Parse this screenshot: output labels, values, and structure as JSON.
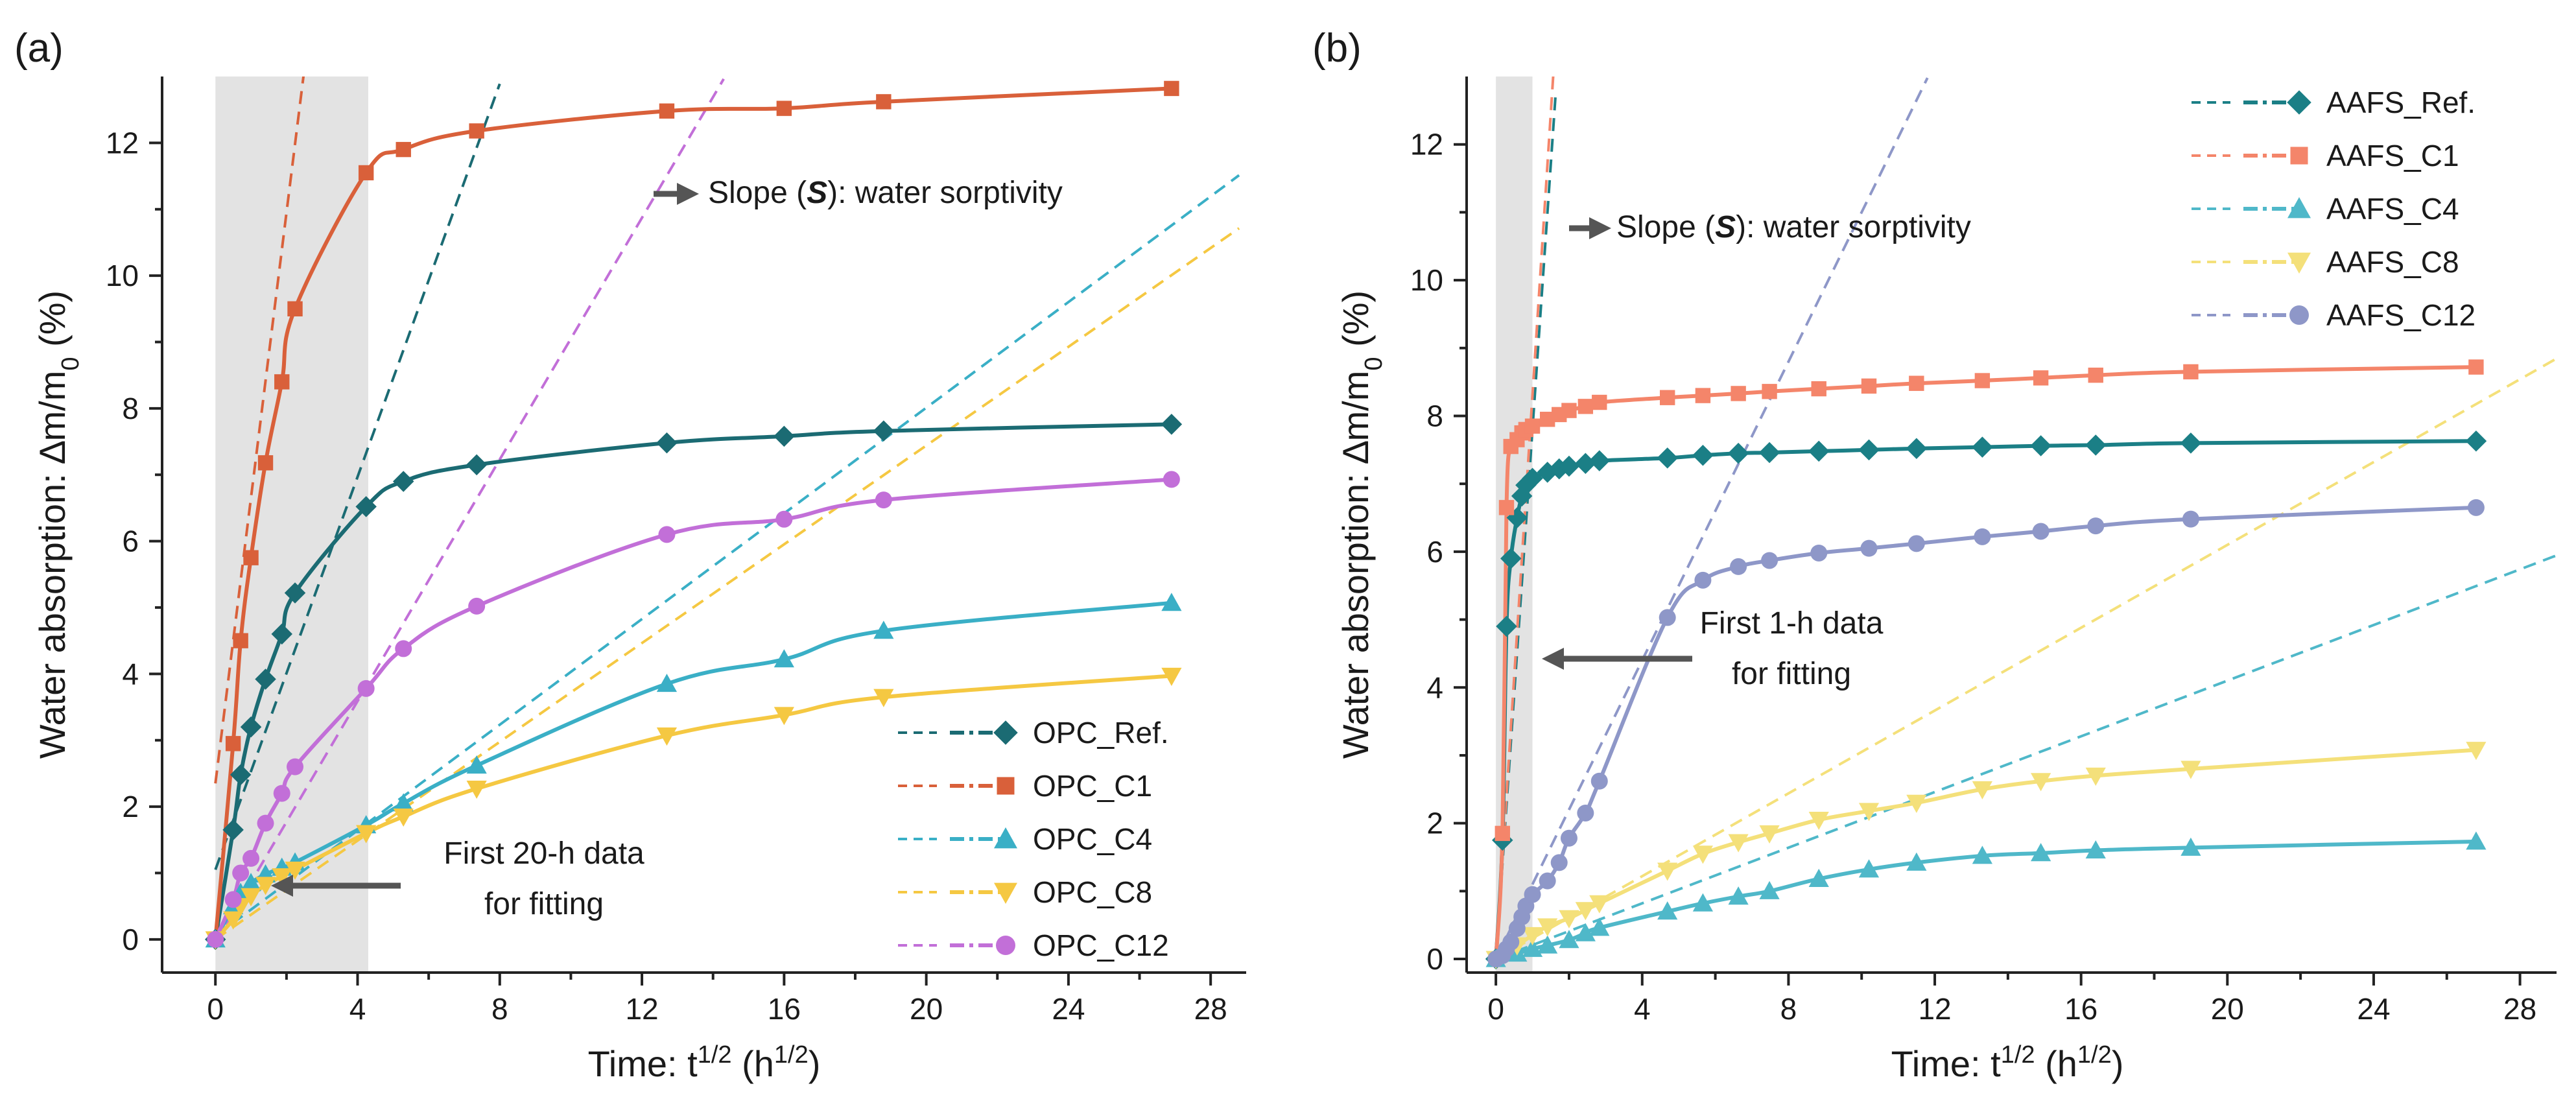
{
  "chart_data": [
    {
      "panel_label": "(a)",
      "type": "line",
      "xlabel": "Time: t^{1/2} (h^{1/2})",
      "ylabel": "Water absorption: ∆m/m_0 (%)",
      "xlim": [
        -1.5,
        29
      ],
      "ylim": [
        -0.5,
        13
      ],
      "xticks": [
        0,
        4,
        8,
        12,
        16,
        20,
        24,
        28
      ],
      "yticks": [
        0,
        2,
        4,
        6,
        8,
        10,
        12
      ],
      "x_tick_labels": [
        "0",
        "4",
        "8",
        "12",
        "16",
        "20",
        "24",
        "28"
      ],
      "y_tick_labels": [
        "0",
        "2",
        "4",
        "6",
        "8",
        "10",
        "12"
      ],
      "shaded_region": [
        0,
        4.3
      ],
      "legend_position": "bottom-right",
      "annotations": [
        {
          "text_before": "Slope (",
          "text_bold": "S",
          "text_after": "): water sorptivity",
          "arrow": "right"
        },
        {
          "lines": [
            "First 20-h data",
            "for fitting"
          ],
          "arrow": "left"
        }
      ],
      "series": [
        {
          "name": "OPC_Ref.",
          "color": "#1b6b73",
          "marker": "diamond",
          "x": [
            0,
            0.5,
            0.71,
            1,
            1.41,
            1.87,
            2.24,
            4.24,
            5.29,
            7.35,
            12.7,
            16,
            18.8,
            26.9
          ],
          "y": [
            0,
            1.65,
            2.48,
            3.2,
            3.92,
            4.6,
            5.22,
            6.52,
            6.9,
            7.15,
            7.48,
            7.58,
            7.66,
            7.76
          ],
          "fit": {
            "slope": 1.48,
            "intercept": 1.05,
            "x_end": 8.0
          }
        },
        {
          "name": "OPC_C1",
          "color": "#d9603a",
          "marker": "square",
          "x": [
            0,
            0.5,
            0.71,
            1,
            1.41,
            1.87,
            2.24,
            4.24,
            5.29,
            7.35,
            12.7,
            16,
            18.8,
            26.9
          ],
          "y": [
            0,
            2.95,
            4.5,
            5.75,
            7.18,
            8.4,
            9.5,
            11.55,
            11.9,
            12.18,
            12.48,
            12.52,
            12.62,
            12.82
          ],
          "fit": {
            "slope": 4.3,
            "intercept": 2.35,
            "x_end": 4.3
          }
        },
        {
          "name": "OPC_C4",
          "color": "#3aafc6",
          "marker": "triangle-up",
          "x": [
            0,
            0.5,
            0.71,
            1,
            1.41,
            1.87,
            2.24,
            4.24,
            5.29,
            7.35,
            12.7,
            16,
            18.8,
            26.9
          ],
          "y": [
            0,
            0.5,
            0.7,
            0.85,
            0.98,
            1.08,
            1.16,
            1.72,
            2.05,
            2.62,
            3.85,
            4.22,
            4.65,
            5.07
          ],
          "fit": {
            "slope": 0.398,
            "intercept": 0.05,
            "x_end": 28.8
          }
        },
        {
          "name": "OPC_C8",
          "color": "#f5c842",
          "marker": "triangle-down",
          "x": [
            0,
            0.5,
            0.71,
            1,
            1.41,
            1.87,
            2.24,
            4.24,
            5.29,
            7.35,
            12.7,
            16,
            18.8,
            26.9
          ],
          "y": [
            0,
            0.3,
            0.5,
            0.65,
            0.82,
            0.95,
            1.05,
            1.6,
            1.85,
            2.27,
            3.07,
            3.38,
            3.65,
            3.97
          ],
          "fit": {
            "slope": 0.372,
            "intercept": 0.0,
            "x_end": 28.8
          }
        },
        {
          "name": "OPC_C12",
          "color": "#c26fd8",
          "marker": "circle",
          "x": [
            0,
            0.5,
            0.71,
            1,
            1.41,
            1.87,
            2.24,
            4.24,
            5.29,
            7.35,
            12.7,
            16,
            18.8,
            26.9
          ],
          "y": [
            0,
            0.6,
            1.0,
            1.22,
            1.75,
            2.2,
            2.6,
            3.78,
            4.38,
            5.02,
            6.1,
            6.33,
            6.62,
            6.93
          ],
          "fit": {
            "slope": 0.91,
            "intercept": -0.05,
            "x_end": 14.3
          }
        }
      ]
    },
    {
      "panel_label": "(b)",
      "type": "line",
      "xlabel": "Time: t^{1/2} (h^{1/2})",
      "ylabel": "Water absorption: ∆m/m_0 (%)",
      "xlim": [
        -0.8,
        29
      ],
      "ylim": [
        -0.2,
        13
      ],
      "xticks": [
        0,
        4,
        8,
        12,
        16,
        20,
        24,
        28
      ],
      "yticks": [
        0,
        2,
        4,
        6,
        8,
        10,
        12
      ],
      "x_tick_labels": [
        "0",
        "4",
        "8",
        "12",
        "16",
        "20",
        "24",
        "28"
      ],
      "y_tick_labels": [
        "0",
        "2",
        "4",
        "6",
        "8",
        "10",
        "12"
      ],
      "shaded_region": [
        0,
        1.0
      ],
      "legend_position": "top-right",
      "annotations": [
        {
          "text_before": "Slope (",
          "text_bold": "S",
          "text_after": "): water sorptivity",
          "arrow": "right"
        },
        {
          "lines": [
            "First 1-h data",
            "for fitting"
          ],
          "arrow": "left"
        }
      ],
      "series": [
        {
          "name": "AAFS_Ref.",
          "color": "#1b7f86",
          "marker": "diamond",
          "x": [
            0,
            0.18,
            0.29,
            0.41,
            0.58,
            0.71,
            0.82,
            1,
            1.41,
            1.73,
            2,
            2.45,
            2.83,
            4.69,
            5.66,
            6.63,
            7.48,
            8.83,
            10.2,
            11.5,
            13.3,
            14.9,
            16.4,
            19,
            26.8
          ],
          "y": [
            0,
            1.75,
            4.9,
            5.9,
            6.5,
            6.82,
            6.98,
            7.08,
            7.17,
            7.22,
            7.26,
            7.3,
            7.34,
            7.38,
            7.42,
            7.45,
            7.46,
            7.48,
            7.5,
            7.52,
            7.54,
            7.56,
            7.57,
            7.6,
            7.63
          ],
          "fit": {
            "slope": 7.8,
            "intercept": 0.0,
            "x_end": 1.64
          }
        },
        {
          "name": "AAFS_C1",
          "color": "#f4856a",
          "marker": "square",
          "x": [
            0,
            0.18,
            0.29,
            0.41,
            0.58,
            0.71,
            0.82,
            1,
            1.41,
            1.73,
            2,
            2.45,
            2.83,
            4.69,
            5.66,
            6.63,
            7.48,
            8.83,
            10.2,
            11.5,
            13.3,
            14.9,
            16.4,
            19,
            26.8
          ],
          "y": [
            0,
            1.85,
            6.65,
            7.55,
            7.65,
            7.75,
            7.8,
            7.85,
            7.95,
            8.02,
            8.08,
            8.14,
            8.2,
            8.27,
            8.3,
            8.33,
            8.36,
            8.4,
            8.44,
            8.48,
            8.52,
            8.56,
            8.6,
            8.65,
            8.72
          ],
          "fit": {
            "slope": 8.3,
            "intercept": 0.0,
            "x_end": 1.57
          }
        },
        {
          "name": "AAFS_C4",
          "color": "#4fb8c9",
          "marker": "triangle-up",
          "x": [
            0,
            0.58,
            1,
            1.41,
            2,
            2.45,
            2.83,
            4.69,
            5.66,
            6.63,
            7.48,
            8.83,
            10.2,
            11.5,
            13.3,
            14.9,
            16.4,
            19,
            26.8
          ],
          "y": [
            0,
            0.08,
            0.15,
            0.2,
            0.28,
            0.38,
            0.46,
            0.7,
            0.82,
            0.92,
            1.0,
            1.18,
            1.32,
            1.42,
            1.52,
            1.56,
            1.6,
            1.64,
            1.73
          ],
          "fit": {
            "slope": 0.205,
            "intercept": 0.0,
            "x_end": 29
          }
        },
        {
          "name": "AAFS_C8",
          "color": "#f4e07a",
          "marker": "triangle-down",
          "x": [
            0,
            0.58,
            1,
            1.41,
            2,
            2.45,
            2.83,
            4.69,
            5.66,
            6.63,
            7.48,
            8.83,
            10.2,
            11.5,
            13.3,
            14.9,
            16.4,
            19,
            26.8
          ],
          "y": [
            0,
            0.2,
            0.35,
            0.48,
            0.6,
            0.72,
            0.82,
            1.3,
            1.55,
            1.72,
            1.85,
            2.05,
            2.18,
            2.3,
            2.5,
            2.62,
            2.7,
            2.8,
            3.08
          ],
          "fit": {
            "slope": 0.305,
            "intercept": 0.0,
            "x_end": 29
          }
        },
        {
          "name": "AAFS_C12",
          "color": "#8e97c8",
          "marker": "circle",
          "x": [
            0,
            0.18,
            0.29,
            0.41,
            0.58,
            0.71,
            0.82,
            1,
            1.41,
            1.73,
            2,
            2.45,
            2.83,
            4.69,
            5.66,
            6.63,
            7.48,
            8.83,
            10.2,
            11.5,
            13.3,
            14.9,
            16.4,
            19,
            26.8
          ],
          "y": [
            0,
            0.05,
            0.15,
            0.25,
            0.45,
            0.62,
            0.78,
            0.95,
            1.15,
            1.42,
            1.78,
            2.15,
            2.62,
            5.03,
            5.58,
            5.78,
            5.87,
            5.98,
            6.05,
            6.12,
            6.22,
            6.3,
            6.38,
            6.48,
            6.65
          ],
          "fit": {
            "slope": 1.1,
            "intercept": 0.0,
            "x_end": 11.8
          }
        }
      ]
    }
  ]
}
